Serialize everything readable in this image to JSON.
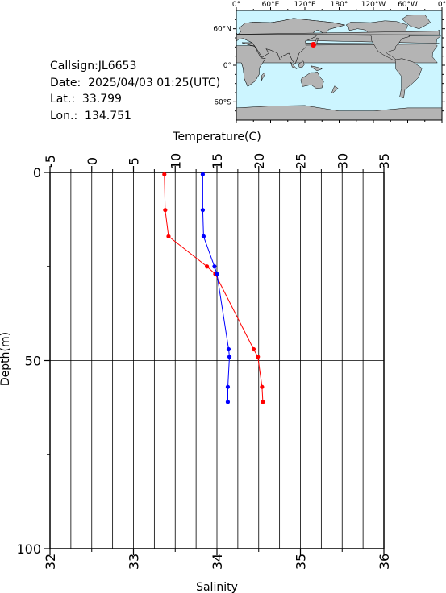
{
  "station": {
    "callsign": "Callsign:JL6653",
    "date": "Date:  2025/04/03 01:25(UTC)",
    "lat": "Lat.:  33.799",
    "lon": "Lon.:  134.751"
  },
  "map": {
    "ocean_color": "#ccf5ff",
    "land_color": "#b4b4b4",
    "marker_color": "#ff0000",
    "top_labels": [
      "0°",
      "60°E",
      "120°E",
      "180°",
      "120°W",
      "60°W",
      "0°"
    ],
    "left_labels": [
      "60°N",
      "0°",
      "60°S"
    ],
    "marker_lon": 134.751,
    "marker_lat": 33.799
  },
  "chart_data": {
    "type": "line",
    "top_axis": {
      "label": "Temperature(C)",
      "range": [
        -5,
        35
      ],
      "ticks": [
        "-5",
        "0",
        "5",
        "10",
        "15",
        "20",
        "25",
        "30",
        "35"
      ]
    },
    "bottom_axis": {
      "label": "Salinity",
      "range": [
        32,
        36
      ],
      "ticks": [
        "32",
        "33",
        "34",
        "35",
        "36"
      ]
    },
    "y_axis": {
      "label": "Depth(m)",
      "range": [
        0,
        100
      ],
      "inverted": true,
      "ticks": [
        "0",
        "50",
        "100"
      ]
    },
    "grid": true,
    "series": [
      {
        "axis": "temperature",
        "color": "#ff0000",
        "points": [
          {
            "x": 8.7,
            "depth": 0.5
          },
          {
            "x": 8.8,
            "depth": 10
          },
          {
            "x": 9.2,
            "depth": 17
          },
          {
            "x": 13.8,
            "depth": 25
          },
          {
            "x": 14.8,
            "depth": 27
          },
          {
            "x": 19.4,
            "depth": 47
          },
          {
            "x": 19.9,
            "depth": 49
          },
          {
            "x": 20.4,
            "depth": 57
          },
          {
            "x": 20.5,
            "depth": 61
          }
        ]
      },
      {
        "axis": "salinity",
        "color": "#0000ff",
        "points": [
          {
            "x": 33.83,
            "depth": 0.5
          },
          {
            "x": 33.83,
            "depth": 10
          },
          {
            "x": 33.84,
            "depth": 17
          },
          {
            "x": 33.97,
            "depth": 25
          },
          {
            "x": 34.0,
            "depth": 27
          },
          {
            "x": 34.14,
            "depth": 47
          },
          {
            "x": 34.15,
            "depth": 49
          },
          {
            "x": 34.13,
            "depth": 57
          },
          {
            "x": 34.13,
            "depth": 61
          }
        ]
      }
    ]
  }
}
